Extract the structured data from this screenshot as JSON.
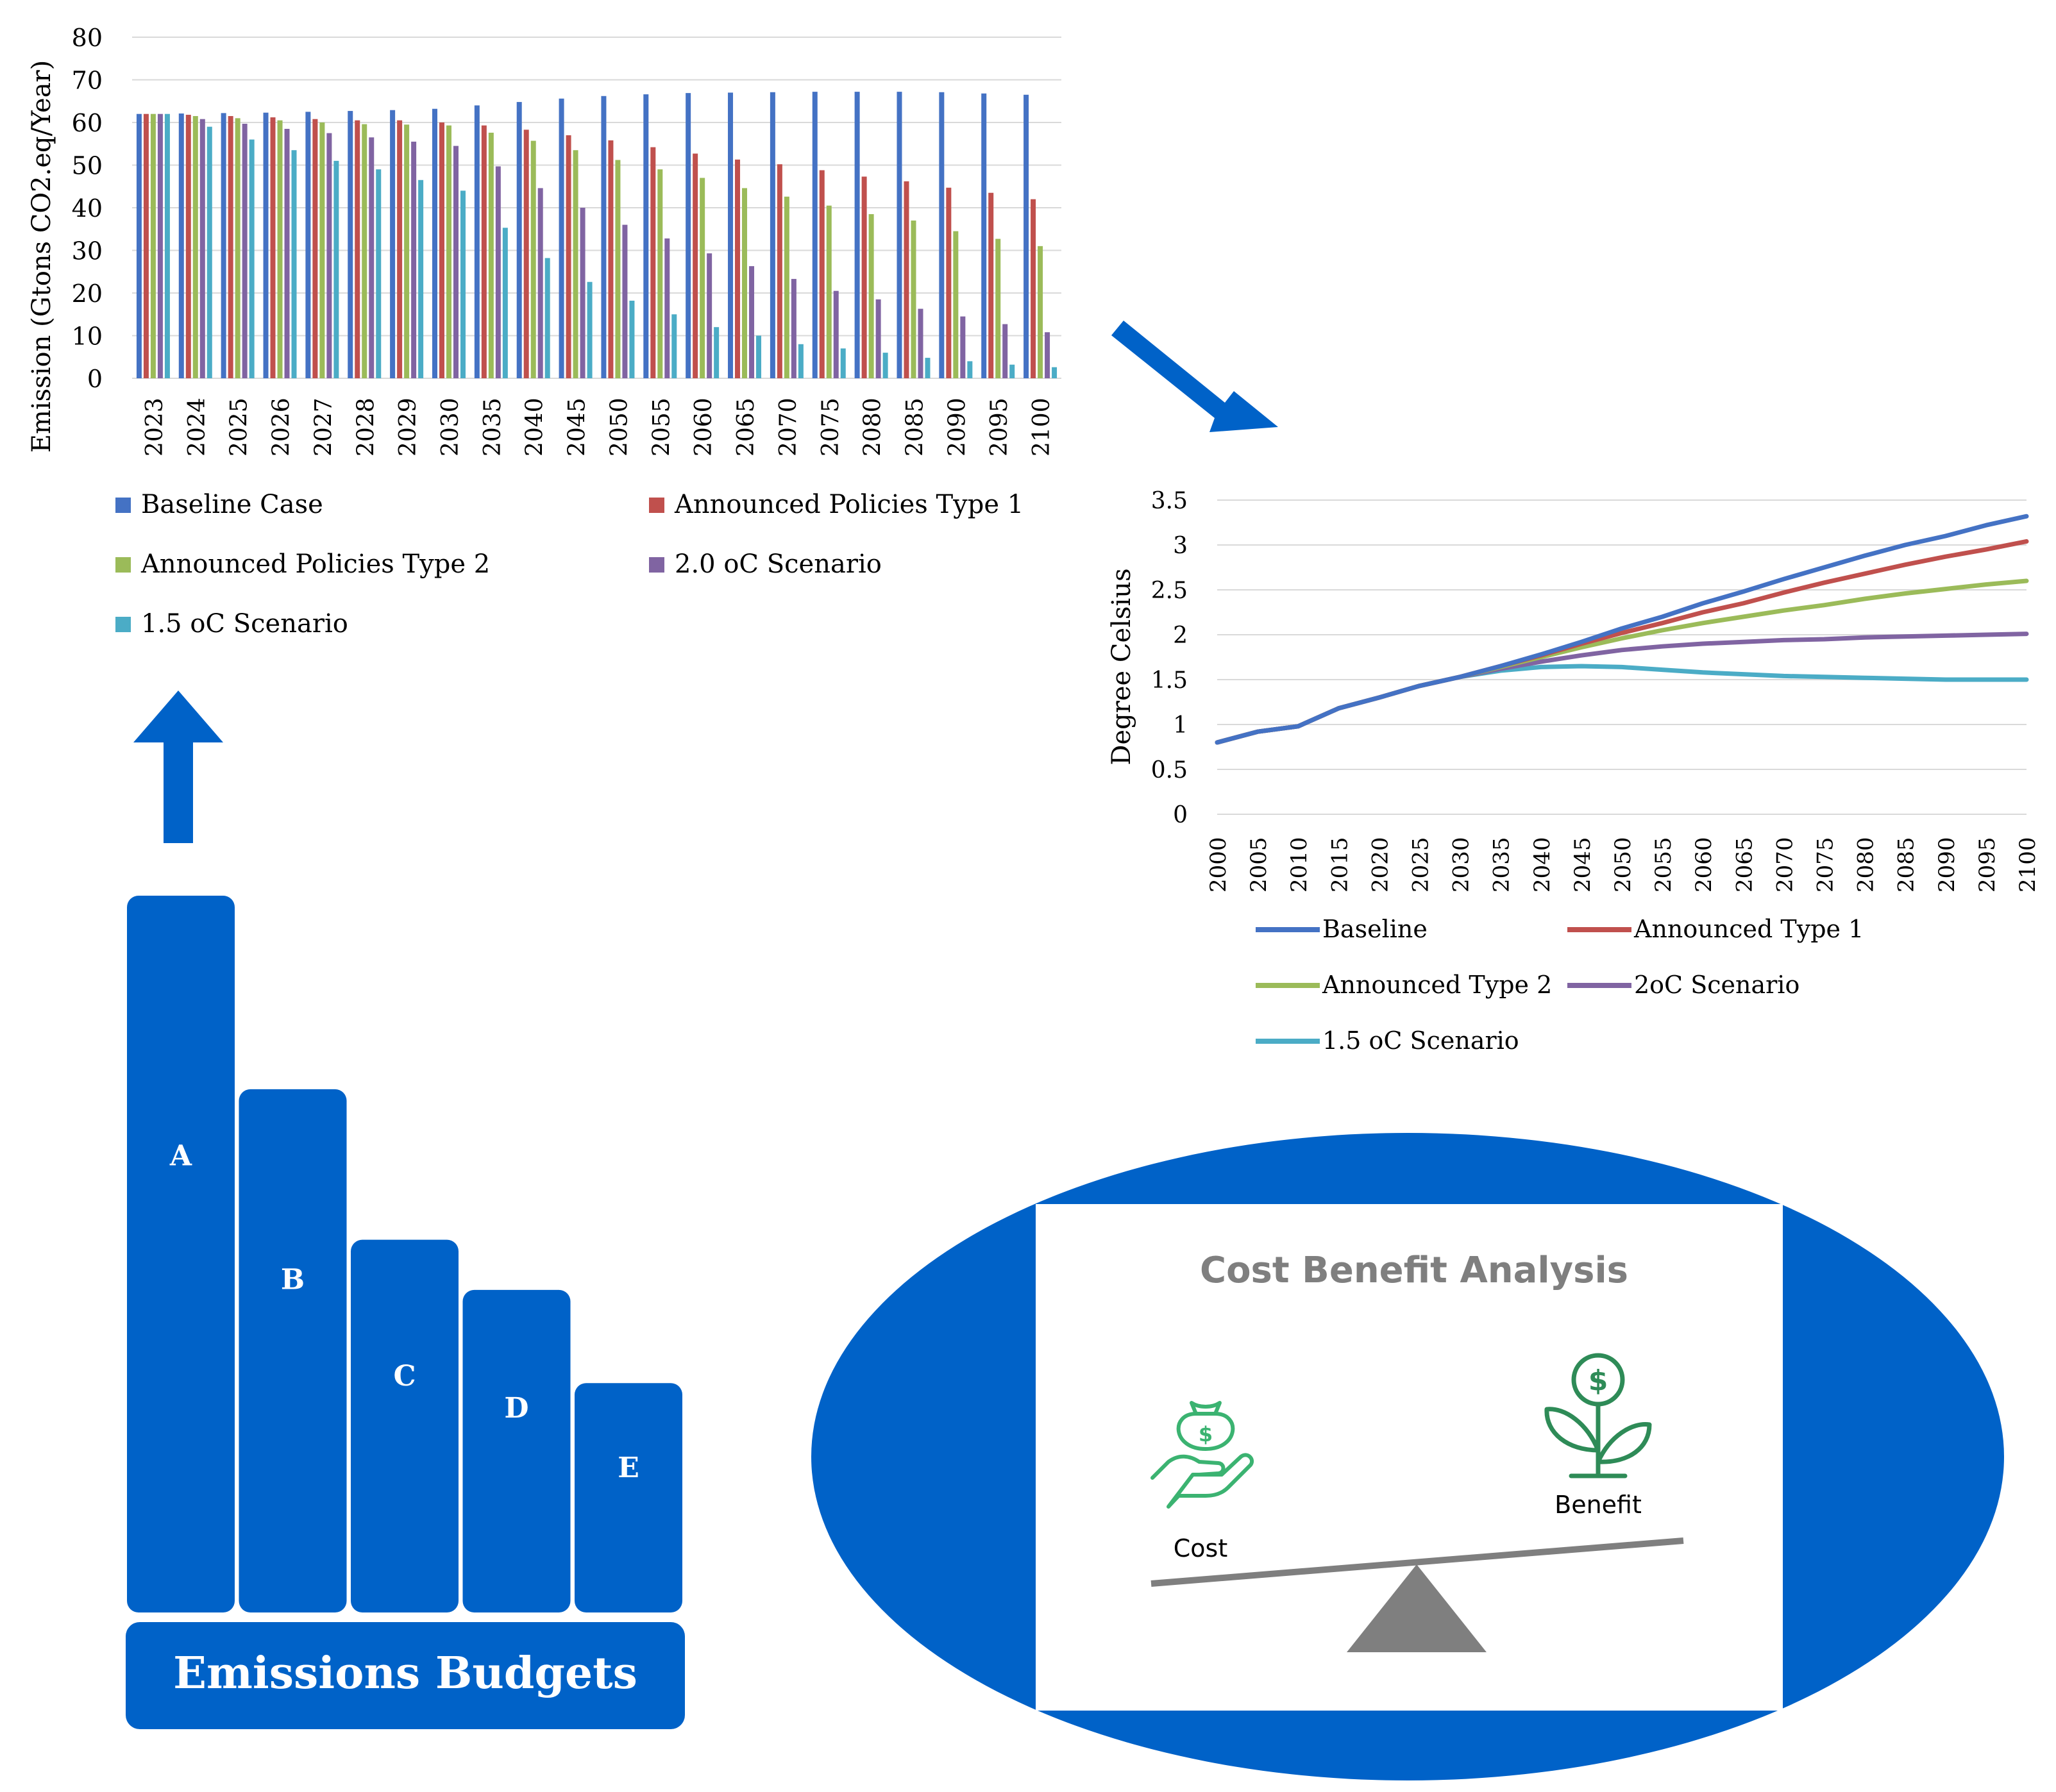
{
  "colors": {
    "blue": "#0062C8",
    "baseline": "#4472C4",
    "type1": "#C0504D",
    "type2": "#9BBB59",
    "s20": "#8064A2",
    "s15": "#4BACC6",
    "grid": "#D9D9D9",
    "green": "#3BB371",
    "gray": "#7F7F7F"
  },
  "chart_data": [
    {
      "type": "bar",
      "title": "",
      "xlabel": "",
      "ylabel": "Emission (Gtons CO2.eq/Year)",
      "ylim": [
        0,
        80
      ],
      "yticks": [
        "0",
        "10",
        "20",
        "30",
        "40",
        "50",
        "60",
        "70",
        "80"
      ],
      "grid": true,
      "legend": "bottom",
      "categories": [
        "2023",
        "2024",
        "2025",
        "2026",
        "2027",
        "2028",
        "2029",
        "2030",
        "2035",
        "2040",
        "2045",
        "2050",
        "2055",
        "2060",
        "2065",
        "2070",
        "2075",
        "2080",
        "2085",
        "2090",
        "2095",
        "2100"
      ],
      "series": [
        {
          "name": "Baseline Case",
          "color": "#4472C4",
          "values": [
            62,
            62.1,
            62.2,
            62.3,
            62.5,
            62.7,
            62.9,
            63.2,
            64,
            64.8,
            65.6,
            66.2,
            66.6,
            66.9,
            67,
            67.1,
            67.2,
            67.2,
            67.2,
            67.1,
            66.8,
            66.5
          ]
        },
        {
          "name": "Announced Policies Type 1",
          "color": "#C0504D",
          "values": [
            62,
            61.8,
            61.5,
            61.2,
            60.8,
            60.5,
            60.5,
            60,
            59.3,
            58.3,
            57,
            55.8,
            54.2,
            52.7,
            51.3,
            50.2,
            48.8,
            47.3,
            46.2,
            44.7,
            43.5,
            42
          ]
        },
        {
          "name": "Announced Policies Type 2",
          "color": "#9BBB59",
          "values": [
            62,
            61.5,
            61,
            60.5,
            60,
            59.6,
            59.5,
            59.3,
            57.6,
            55.7,
            53.5,
            51.2,
            49,
            47,
            44.6,
            42.6,
            40.5,
            38.5,
            37,
            34.5,
            32.7,
            31
          ]
        },
        {
          "name": "2.0 oC Scenario",
          "color": "#8064A2",
          "values": [
            62,
            60.8,
            59.7,
            58.5,
            57.5,
            56.5,
            55.5,
            54.5,
            49.7,
            44.6,
            40,
            36,
            32.8,
            29.3,
            26.3,
            23.3,
            20.5,
            18.5,
            16.3,
            14.5,
            12.7,
            10.8
          ]
        },
        {
          "name": "1.5 oC Scenario",
          "color": "#4BACC6",
          "values": [
            62,
            59,
            56,
            53.5,
            51,
            49,
            46.5,
            44,
            35.3,
            28.2,
            22.6,
            18.2,
            15,
            12,
            10,
            8,
            7,
            6,
            4.8,
            4,
            3.2,
            2.6
          ]
        }
      ]
    },
    {
      "type": "line",
      "title": "",
      "xlabel": "",
      "ylabel": "Degree Celsius",
      "ylim": [
        0,
        3.5
      ],
      "yticks": [
        "0",
        "0.5",
        "1",
        "1.5",
        "2",
        "2.5",
        "3",
        "3.5"
      ],
      "grid": true,
      "legend": "bottom",
      "x": [
        "2000",
        "2005",
        "2010",
        "2015",
        "2020",
        "2025",
        "2030",
        "2035",
        "2040",
        "2045",
        "2050",
        "2055",
        "2060",
        "2065",
        "2070",
        "2075",
        "2080",
        "2085",
        "2090",
        "2095",
        "2100"
      ],
      "series": [
        {
          "name": "Baseline",
          "color": "#4472C4",
          "values": [
            0.8,
            0.92,
            0.98,
            1.18,
            1.3,
            1.43,
            1.53,
            1.65,
            1.78,
            1.92,
            2.07,
            2.2,
            2.35,
            2.48,
            2.62,
            2.75,
            2.88,
            3.0,
            3.1,
            3.22,
            3.32
          ]
        },
        {
          "name": "Announced Type 1",
          "color": "#C0504D",
          "values": [
            0.8,
            0.92,
            0.98,
            1.18,
            1.3,
            1.43,
            1.53,
            1.65,
            1.77,
            1.9,
            2.02,
            2.13,
            2.25,
            2.35,
            2.47,
            2.58,
            2.68,
            2.78,
            2.87,
            2.95,
            3.04
          ]
        },
        {
          "name": "Announced Type 2",
          "color": "#9BBB59",
          "values": [
            0.8,
            0.92,
            0.98,
            1.18,
            1.3,
            1.43,
            1.53,
            1.64,
            1.75,
            1.86,
            1.96,
            2.05,
            2.13,
            2.2,
            2.27,
            2.33,
            2.4,
            2.46,
            2.51,
            2.56,
            2.6
          ]
        },
        {
          "name": "2oC Scenario",
          "color": "#8064A2",
          "values": [
            0.8,
            0.92,
            0.98,
            1.18,
            1.3,
            1.43,
            1.53,
            1.62,
            1.7,
            1.77,
            1.83,
            1.87,
            1.9,
            1.92,
            1.94,
            1.95,
            1.97,
            1.98,
            1.99,
            2.0,
            2.01
          ]
        },
        {
          "name": "1.5 oC Scenario",
          "color": "#4BACC6",
          "values": [
            0.8,
            0.92,
            0.98,
            1.18,
            1.3,
            1.43,
            1.53,
            1.6,
            1.64,
            1.65,
            1.64,
            1.61,
            1.58,
            1.56,
            1.54,
            1.53,
            1.52,
            1.51,
            1.5,
            1.5,
            1.5
          ]
        }
      ]
    }
  ],
  "budgets": {
    "label": "Emissions Budgets",
    "bars": [
      {
        "label": "A",
        "share": 1.0
      },
      {
        "label": "B",
        "share": 0.73
      },
      {
        "label": "C",
        "share": 0.52
      },
      {
        "label": "D",
        "share": 0.45
      },
      {
        "label": "E",
        "share": 0.32
      }
    ]
  },
  "cba": {
    "title": "Cost Benefit Analysis",
    "cost_label": "Cost",
    "benefit_label": "Benefit",
    "cost_icon": "money-bag-hand-icon",
    "benefit_icon": "money-plant-icon"
  }
}
